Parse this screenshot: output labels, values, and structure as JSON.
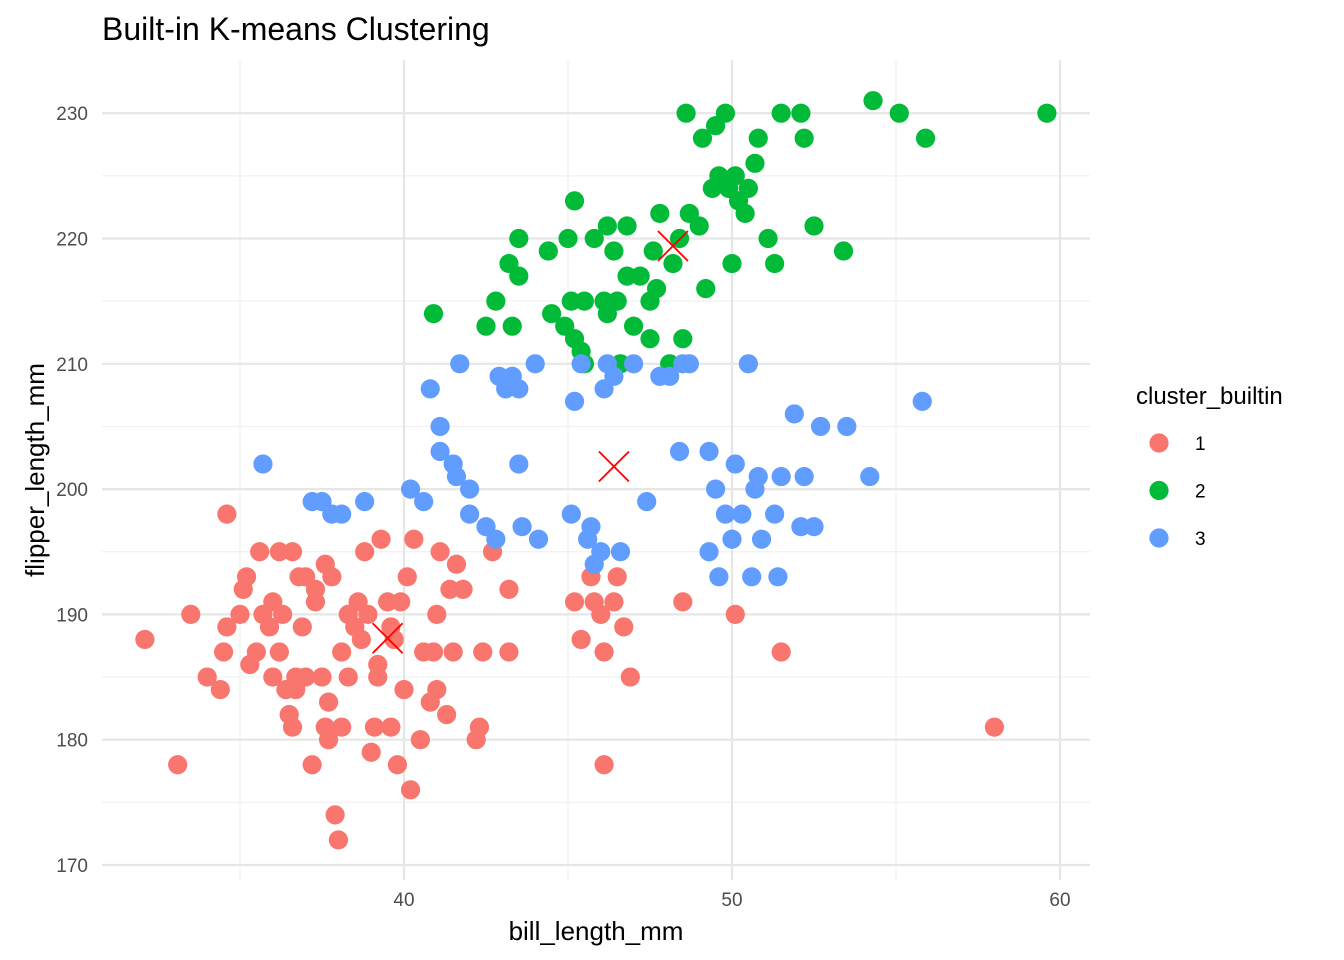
{
  "chart_data": {
    "type": "scatter",
    "title": "Built-in K-means Clustering",
    "xlabel": "bill_length_mm",
    "ylabel": "flipper_length_mm",
    "xlim": [
      31,
      61
    ],
    "ylim": [
      169.5,
      234
    ],
    "x_ticks": [
      40,
      50,
      60
    ],
    "y_ticks": [
      170,
      180,
      190,
      200,
      210,
      220,
      230
    ],
    "x_tick_labels": [
      "40",
      "50",
      "60"
    ],
    "y_tick_labels": [
      "170",
      "180",
      "190",
      "200",
      "210",
      "220",
      "230"
    ],
    "grid": true,
    "legend": {
      "title": "cluster_builtin",
      "position": "right"
    },
    "series": [
      {
        "name": "1",
        "color": "#F8766D",
        "points": [
          [
            32.1,
            188
          ],
          [
            33.1,
            178
          ],
          [
            33.5,
            190
          ],
          [
            34.0,
            185
          ],
          [
            34.4,
            184
          ],
          [
            34.5,
            187
          ],
          [
            34.6,
            189
          ],
          [
            34.6,
            198
          ],
          [
            35.0,
            190
          ],
          [
            35.1,
            192
          ],
          [
            35.2,
            193
          ],
          [
            35.3,
            186
          ],
          [
            35.5,
            187
          ],
          [
            35.6,
            195
          ],
          [
            35.7,
            190
          ],
          [
            35.9,
            189
          ],
          [
            36.0,
            191
          ],
          [
            36.0,
            185
          ],
          [
            36.2,
            195
          ],
          [
            36.2,
            187
          ],
          [
            36.3,
            190
          ],
          [
            36.4,
            184
          ],
          [
            36.5,
            182
          ],
          [
            36.6,
            195
          ],
          [
            36.6,
            181
          ],
          [
            36.7,
            185
          ],
          [
            36.7,
            184
          ],
          [
            36.8,
            193
          ],
          [
            36.9,
            189
          ],
          [
            37.0,
            193
          ],
          [
            37.0,
            185
          ],
          [
            37.2,
            178
          ],
          [
            37.3,
            192
          ],
          [
            37.3,
            191
          ],
          [
            37.5,
            185
          ],
          [
            37.6,
            194
          ],
          [
            37.6,
            181
          ],
          [
            37.7,
            183
          ],
          [
            37.7,
            180
          ],
          [
            37.8,
            193
          ],
          [
            37.9,
            174
          ],
          [
            38.0,
            172
          ],
          [
            38.1,
            181
          ],
          [
            38.1,
            187
          ],
          [
            38.3,
            190
          ],
          [
            38.3,
            185
          ],
          [
            38.5,
            189
          ],
          [
            38.6,
            191
          ],
          [
            38.7,
            188
          ],
          [
            38.8,
            195
          ],
          [
            38.9,
            190
          ],
          [
            39.0,
            179
          ],
          [
            39.1,
            181
          ],
          [
            39.2,
            186
          ],
          [
            39.2,
            185
          ],
          [
            39.3,
            196
          ],
          [
            39.5,
            191
          ],
          [
            39.6,
            189
          ],
          [
            39.6,
            181
          ],
          [
            39.7,
            188
          ],
          [
            39.8,
            178
          ],
          [
            39.9,
            191
          ],
          [
            40.0,
            184
          ],
          [
            40.1,
            193
          ],
          [
            40.2,
            176
          ],
          [
            40.3,
            196
          ],
          [
            40.5,
            180
          ],
          [
            40.6,
            187
          ],
          [
            40.8,
            183
          ],
          [
            40.9,
            187
          ],
          [
            41.0,
            184
          ],
          [
            41.0,
            190
          ],
          [
            41.1,
            195
          ],
          [
            41.3,
            182
          ],
          [
            41.4,
            192
          ],
          [
            41.5,
            187
          ],
          [
            41.6,
            194
          ],
          [
            41.8,
            192
          ],
          [
            42.2,
            180
          ],
          [
            42.3,
            181
          ],
          [
            42.4,
            187
          ],
          [
            42.7,
            195
          ],
          [
            43.2,
            187
          ],
          [
            43.2,
            192
          ],
          [
            45.2,
            191
          ],
          [
            45.4,
            188
          ],
          [
            45.7,
            193
          ],
          [
            45.8,
            191
          ],
          [
            46.0,
            190
          ],
          [
            46.1,
            187
          ],
          [
            46.1,
            178
          ],
          [
            46.4,
            191
          ],
          [
            46.5,
            193
          ],
          [
            46.7,
            189
          ],
          [
            46.9,
            185
          ],
          [
            48.5,
            191
          ],
          [
            50.1,
            190
          ],
          [
            51.5,
            187
          ],
          [
            58.0,
            181
          ]
        ]
      },
      {
        "name": "2",
        "color": "#00BA38",
        "points": [
          [
            40.9,
            214
          ],
          [
            42.5,
            213
          ],
          [
            42.8,
            215
          ],
          [
            43.2,
            218
          ],
          [
            43.3,
            213
          ],
          [
            43.5,
            217
          ],
          [
            43.5,
            220
          ],
          [
            44.4,
            219
          ],
          [
            44.5,
            214
          ],
          [
            44.9,
            213
          ],
          [
            45.0,
            220
          ],
          [
            45.1,
            215
          ],
          [
            45.2,
            212
          ],
          [
            45.2,
            223
          ],
          [
            45.4,
            211
          ],
          [
            45.5,
            210
          ],
          [
            45.5,
            215
          ],
          [
            45.8,
            220
          ],
          [
            46.1,
            215
          ],
          [
            46.2,
            221
          ],
          [
            46.2,
            214
          ],
          [
            46.4,
            219
          ],
          [
            46.5,
            215
          ],
          [
            46.6,
            210
          ],
          [
            46.8,
            217
          ],
          [
            46.8,
            221
          ],
          [
            47.0,
            213
          ],
          [
            47.2,
            217
          ],
          [
            47.5,
            215
          ],
          [
            47.5,
            212
          ],
          [
            47.6,
            219
          ],
          [
            47.7,
            216
          ],
          [
            47.8,
            222
          ],
          [
            48.1,
            210
          ],
          [
            48.2,
            218
          ],
          [
            48.4,
            220
          ],
          [
            48.5,
            212
          ],
          [
            48.6,
            230
          ],
          [
            48.7,
            222
          ],
          [
            49.0,
            221
          ],
          [
            49.1,
            228
          ],
          [
            49.2,
            216
          ],
          [
            49.4,
            224
          ],
          [
            49.5,
            229
          ],
          [
            49.6,
            225
          ],
          [
            49.8,
            230
          ],
          [
            49.9,
            224
          ],
          [
            50.0,
            218
          ],
          [
            50.1,
            225
          ],
          [
            50.2,
            223
          ],
          [
            50.4,
            222
          ],
          [
            50.5,
            224
          ],
          [
            50.7,
            226
          ],
          [
            50.8,
            228
          ],
          [
            51.1,
            220
          ],
          [
            51.3,
            218
          ],
          [
            51.5,
            230
          ],
          [
            52.1,
            230
          ],
          [
            52.2,
            228
          ],
          [
            52.5,
            221
          ],
          [
            53.4,
            219
          ],
          [
            54.3,
            231
          ],
          [
            55.1,
            230
          ],
          [
            55.9,
            228
          ],
          [
            59.6,
            230
          ]
        ]
      },
      {
        "name": "3",
        "color": "#619CFF",
        "points": [
          [
            35.7,
            202
          ],
          [
            37.2,
            199
          ],
          [
            37.5,
            199
          ],
          [
            37.8,
            198
          ],
          [
            38.1,
            198
          ],
          [
            38.8,
            199
          ],
          [
            40.2,
            200
          ],
          [
            40.6,
            199
          ],
          [
            40.8,
            208
          ],
          [
            41.1,
            203
          ],
          [
            41.1,
            205
          ],
          [
            41.5,
            202
          ],
          [
            41.6,
            201
          ],
          [
            41.7,
            210
          ],
          [
            42.0,
            198
          ],
          [
            42.0,
            200
          ],
          [
            42.5,
            197
          ],
          [
            42.8,
            196
          ],
          [
            42.9,
            209
          ],
          [
            43.1,
            208
          ],
          [
            43.3,
            209
          ],
          [
            43.5,
            208
          ],
          [
            43.5,
            202
          ],
          [
            43.6,
            197
          ],
          [
            44.0,
            210
          ],
          [
            44.1,
            196
          ],
          [
            45.1,
            198
          ],
          [
            45.2,
            207
          ],
          [
            45.4,
            210
          ],
          [
            45.6,
            196
          ],
          [
            45.7,
            197
          ],
          [
            45.8,
            194
          ],
          [
            46.0,
            195
          ],
          [
            46.1,
            208
          ],
          [
            46.2,
            210
          ],
          [
            46.4,
            209
          ],
          [
            46.6,
            195
          ],
          [
            47.0,
            210
          ],
          [
            47.4,
            199
          ],
          [
            47.8,
            209
          ],
          [
            48.1,
            209
          ],
          [
            48.4,
            203
          ],
          [
            48.5,
            210
          ],
          [
            48.7,
            210
          ],
          [
            49.3,
            195
          ],
          [
            49.3,
            203
          ],
          [
            49.5,
            200
          ],
          [
            49.6,
            193
          ],
          [
            49.8,
            198
          ],
          [
            50.0,
            196
          ],
          [
            50.1,
            202
          ],
          [
            50.3,
            198
          ],
          [
            50.5,
            210
          ],
          [
            50.6,
            193
          ],
          [
            50.7,
            200
          ],
          [
            50.8,
            201
          ],
          [
            50.9,
            196
          ],
          [
            51.3,
            198
          ],
          [
            51.4,
            193
          ],
          [
            51.5,
            201
          ],
          [
            51.9,
            206
          ],
          [
            52.1,
            197
          ],
          [
            52.2,
            201
          ],
          [
            52.5,
            197
          ],
          [
            52.7,
            205
          ],
          [
            53.5,
            205
          ],
          [
            54.2,
            201
          ],
          [
            55.8,
            207
          ]
        ]
      }
    ],
    "centroids": {
      "color": "#FF0000",
      "points": [
        [
          39.5,
          188.1
        ],
        [
          48.2,
          219.4
        ],
        [
          46.4,
          201.8
        ]
      ]
    }
  }
}
